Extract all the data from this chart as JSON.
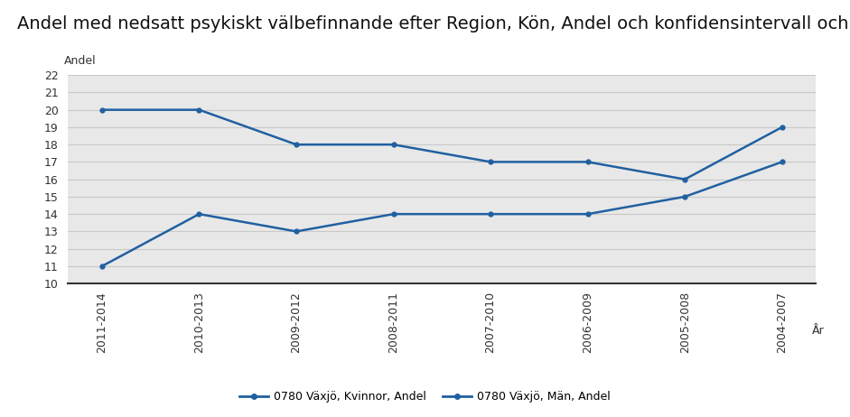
{
  "title": "Andel med nedsatt psykiskt välbefinnande efter Region, Kön, Andel och konfidensintervall och År",
  "ylabel": "Andel",
  "xlabel": "År",
  "x_labels": [
    "2011-2014",
    "2010-2013",
    "2009-2012",
    "2008-2011",
    "2007-2010",
    "2006-2009",
    "2005-2008",
    "2004-2007"
  ],
  "kvinnor_values": [
    20.0,
    20.0,
    18.0,
    18.0,
    17.0,
    17.0,
    16.0,
    19.0
  ],
  "man_values": [
    11.0,
    14.0,
    13.0,
    14.0,
    14.0,
    14.0,
    15.0,
    17.0
  ],
  "kvinnor_label": "0780 Växjö, Kvinnor, Andel",
  "man_label": "0780 Växjö, Män, Andel",
  "line_color": "#2060A0",
  "ylim": [
    10,
    22
  ],
  "yticks": [
    10,
    11,
    12,
    13,
    14,
    15,
    16,
    17,
    18,
    19,
    20,
    21,
    22
  ],
  "plot_bg": "#E8E8E8",
  "grid_color": "#C8C8C8",
  "title_fontsize": 14,
  "axis_label_fontsize": 9,
  "tick_fontsize": 9,
  "legend_fontsize": 9
}
